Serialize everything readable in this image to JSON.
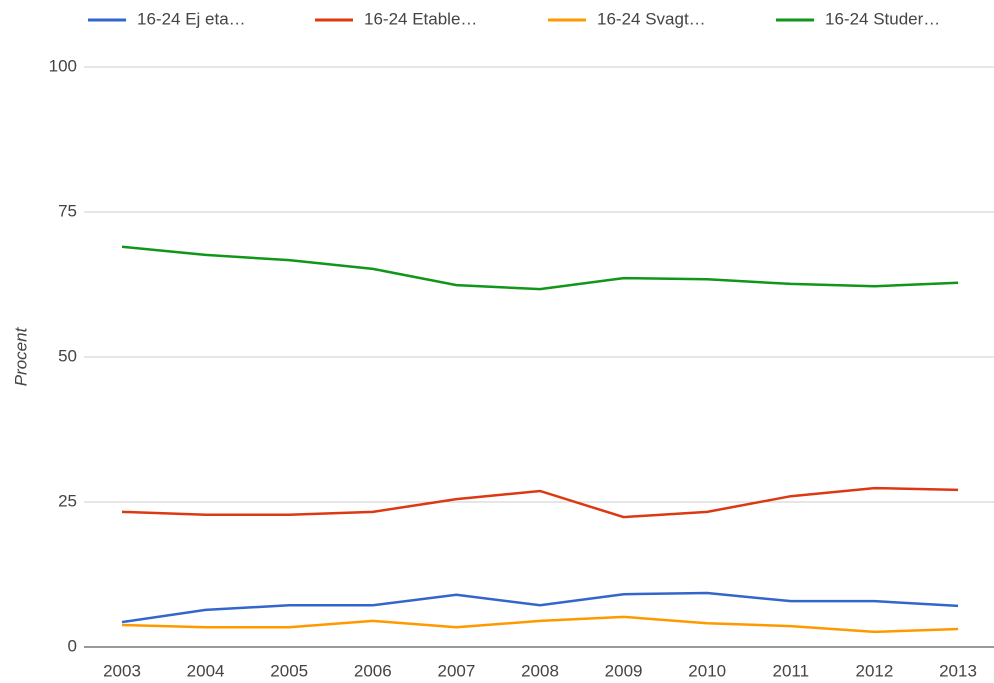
{
  "chart_data": {
    "type": "line",
    "y_label": "Procent",
    "categories": [
      "2003",
      "2004",
      "2005",
      "2006",
      "2007",
      "2008",
      "2009",
      "2010",
      "2011",
      "2012",
      "2013"
    ],
    "series": [
      {
        "name": "16-24 Ej eta…",
        "color": "#3366cc",
        "values": [
          4.3,
          6.4,
          7.2,
          7.2,
          9.0,
          7.2,
          9.1,
          9.3,
          7.9,
          7.9,
          7.1
        ]
      },
      {
        "name": "16-24 Etable…",
        "color": "#dc3912",
        "values": [
          23.3,
          22.8,
          22.8,
          23.3,
          25.5,
          26.9,
          22.4,
          23.3,
          26.0,
          27.4,
          27.1
        ]
      },
      {
        "name": "16-24 Svagt…",
        "color": "#ff9900",
        "values": [
          3.8,
          3.4,
          3.4,
          4.5,
          3.4,
          4.5,
          5.2,
          4.1,
          3.6,
          2.6,
          3.1
        ]
      },
      {
        "name": "16-24 Studer…",
        "color": "#109618",
        "values": [
          69.0,
          67.6,
          66.7,
          65.2,
          62.4,
          61.7,
          63.6,
          63.4,
          62.6,
          62.2,
          62.8
        ]
      }
    ],
    "ylim": [
      0,
      100
    ],
    "yticks": [
      0,
      25,
      50,
      75,
      100
    ],
    "grid": true,
    "legend": "top"
  }
}
